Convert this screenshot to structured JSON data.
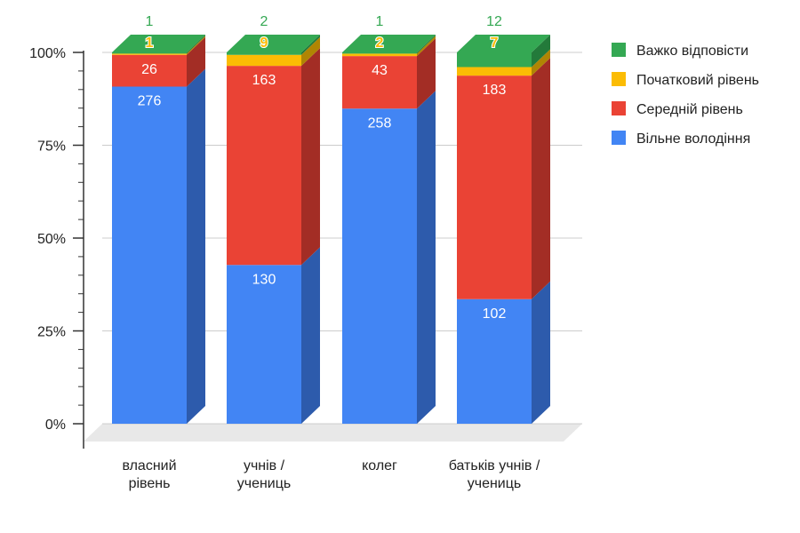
{
  "chart_data": {
    "type": "bar",
    "stacked": true,
    "normalized": true,
    "style": "3d",
    "categories": [
      [
        "власний",
        "рівень"
      ],
      [
        "учнів /",
        "учениць"
      ],
      [
        "колег"
      ],
      [
        "батьків учнів /",
        "учениць"
      ]
    ],
    "series": [
      {
        "name": "Вільне володіння",
        "color": "#4285f4",
        "side": "#2d5bac",
        "label_color": "#ffffff",
        "values": [
          276,
          130,
          258,
          102
        ]
      },
      {
        "name": "Середній рівень",
        "color": "#ea4335",
        "side": "#a32d25",
        "label_color": "#ffffff",
        "values": [
          26,
          163,
          43,
          183
        ]
      },
      {
        "name": "Початковий рівень",
        "color": "#fbbc04",
        "side": "#b08503",
        "label_color": "#fbbc04",
        "values": [
          1,
          9,
          2,
          7
        ]
      },
      {
        "name": "Важко відповісти",
        "color": "#34a853",
        "side": "#237a3a",
        "label_color": "#34a853",
        "values": [
          1,
          2,
          1,
          12
        ]
      }
    ],
    "legend_order": [
      "Важко відповісти",
      "Початковий рівень",
      "Середній рівень",
      "Вільне володіння"
    ],
    "legend_position": "right",
    "y_ticks": [
      "0%",
      "25%",
      "50%",
      "75%",
      "100%"
    ],
    "ylim": [
      0,
      100
    ],
    "grid": true
  }
}
